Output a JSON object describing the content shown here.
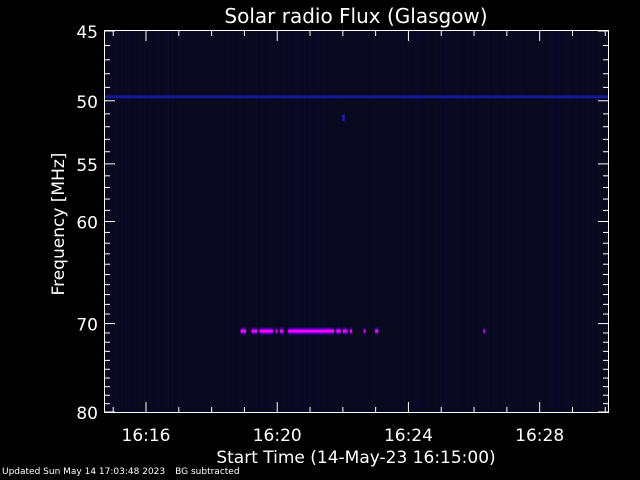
{
  "chart_data": {
    "type": "heatmap",
    "title": "Solar radio Flux (Glasgow)",
    "xlabel": "Start Time (14-May-23 16:15:00)",
    "ylabel": "Frequency [MHz]",
    "x_range": [
      "16:14:45",
      "16:30:05"
    ],
    "x_ticks": [
      "16:16",
      "16:20",
      "16:24",
      "16:28"
    ],
    "y_range": [
      45,
      80
    ],
    "y_scale": "log",
    "y_ticks": [
      45,
      50,
      55,
      60,
      70,
      80
    ],
    "colors": {
      "background": "#08081f",
      "constant_line": "#1a1ab0",
      "burst_core": "#ff00ff",
      "burst_edge": "#4000aa",
      "faint_stripe": "#0c0c2a"
    },
    "features": {
      "constant_line": {
        "freq_mhz": 49.7,
        "start": "16:14:45",
        "end": "16:30:05"
      },
      "burst": {
        "freq_mhz": 70.8,
        "segments": [
          [
            "16:18:53",
            "16:19:03"
          ],
          [
            "16:19:13",
            "16:19:23"
          ],
          [
            "16:19:28",
            "16:19:52"
          ],
          [
            "16:19:57",
            "16:20:00"
          ],
          [
            "16:20:05",
            "16:20:12"
          ],
          [
            "16:20:20",
            "16:21:44"
          ],
          [
            "16:21:48",
            "16:21:56"
          ],
          [
            "16:22:00",
            "16:22:08"
          ],
          [
            "16:22:13",
            "16:22:17"
          ],
          [
            "16:22:38",
            "16:22:41"
          ],
          [
            "16:22:59",
            "16:23:05"
          ],
          [
            "16:26:17",
            "16:26:19"
          ]
        ]
      },
      "spot": {
        "time": "16:22:01",
        "freq_mhz": 51.3
      }
    }
  },
  "footer": {
    "updated": "Updated Sun May 14 17:03:48 2023",
    "note": "BG subtracted"
  }
}
